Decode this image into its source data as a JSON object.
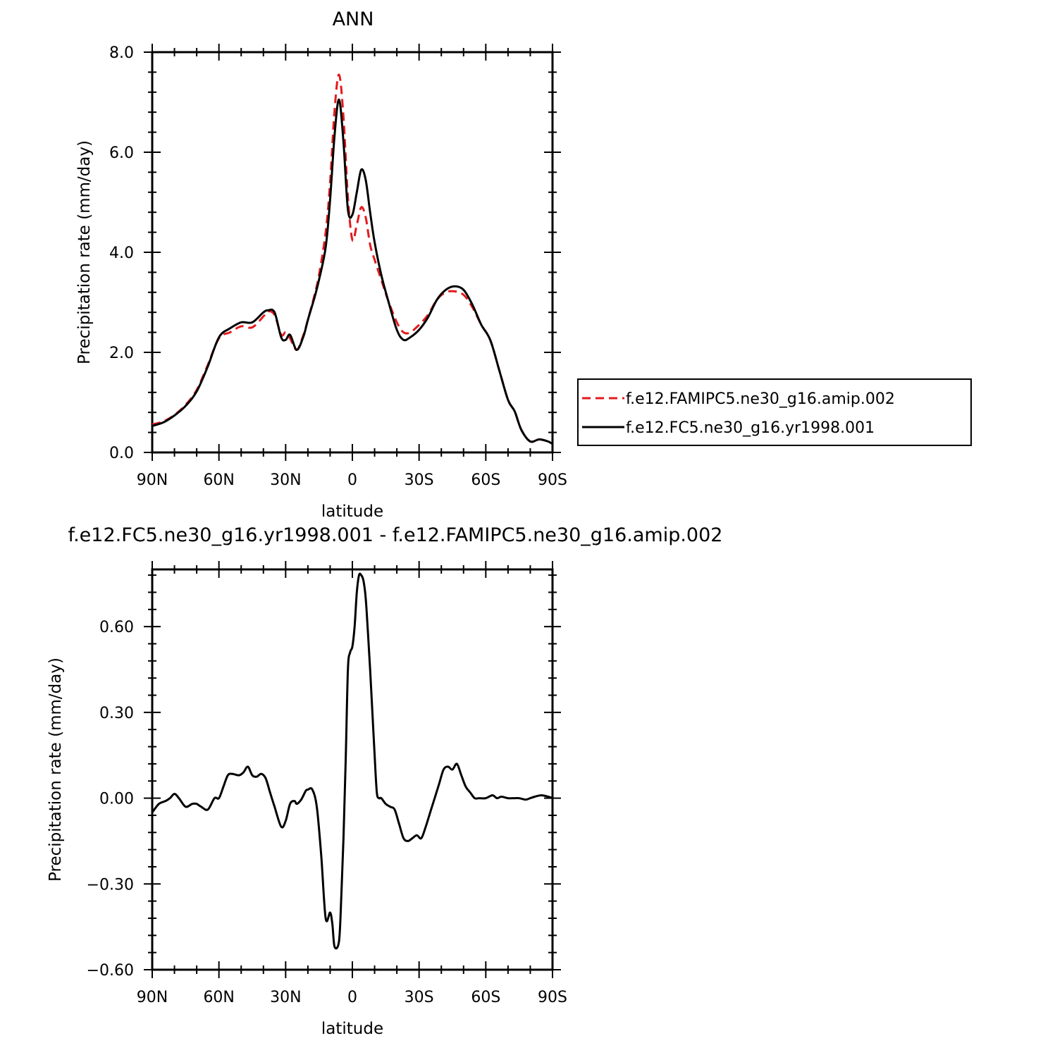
{
  "chart_data": [
    {
      "type": "line",
      "title": "ANN",
      "xlabel": "latitude",
      "ylabel": "Precipitation rate (mm/day)",
      "x_ticks": [
        "90N",
        "60N",
        "30N",
        "0",
        "30S",
        "60S",
        "90S"
      ],
      "y_ticks": [
        "0.0",
        "2.0",
        "4.0",
        "6.0",
        "8.0"
      ],
      "xlim": [
        90,
        -90
      ],
      "ylim": [
        0,
        8
      ],
      "legend_position": "right",
      "x": [
        90,
        85,
        80,
        75,
        70,
        65,
        60,
        55,
        50,
        45,
        40,
        38,
        35,
        32,
        30,
        28,
        25,
        22,
        20,
        17,
        15,
        12,
        10,
        8,
        6,
        4,
        2,
        0,
        -2,
        -4,
        -6,
        -8,
        -10,
        -13,
        -16,
        -20,
        -23,
        -26,
        -30,
        -34,
        -38,
        -42,
        -46,
        -50,
        -54,
        -58,
        -62,
        -66,
        -70,
        -73,
        -76,
        -80,
        -84,
        -88,
        -90
      ],
      "series": [
        {
          "name": "f.e12.FAMIPC5.ne30_g16.amip.002",
          "color": "#e31a1c",
          "dash": "dashed",
          "values": [
            0.56,
            0.62,
            0.75,
            0.95,
            1.25,
            1.75,
            2.28,
            2.4,
            2.52,
            2.5,
            2.72,
            2.82,
            2.75,
            2.35,
            2.4,
            2.28,
            2.05,
            2.35,
            2.65,
            3.15,
            3.55,
            4.4,
            5.4,
            6.85,
            7.55,
            6.7,
            5.1,
            4.25,
            4.55,
            4.9,
            4.7,
            4.15,
            3.85,
            3.45,
            3.05,
            2.6,
            2.4,
            2.4,
            2.55,
            2.75,
            3.05,
            3.2,
            3.22,
            3.15,
            2.9,
            2.55,
            2.25,
            1.65,
            1.05,
            0.82,
            0.45,
            0.22,
            0.26,
            0.22,
            0.17
          ]
        },
        {
          "name": "f.e12.FC5.ne30_g16.yr1998.001",
          "color": "#000000",
          "dash": "solid",
          "values": [
            0.53,
            0.6,
            0.74,
            0.93,
            1.22,
            1.72,
            2.3,
            2.48,
            2.6,
            2.6,
            2.8,
            2.84,
            2.8,
            2.3,
            2.25,
            2.35,
            2.05,
            2.32,
            2.65,
            3.1,
            3.45,
            4.1,
            5.05,
            6.35,
            7.05,
            6.2,
            4.85,
            4.75,
            5.2,
            5.65,
            5.45,
            4.8,
            4.2,
            3.55,
            3.05,
            2.45,
            2.25,
            2.3,
            2.45,
            2.7,
            3.05,
            3.25,
            3.32,
            3.25,
            2.95,
            2.55,
            2.25,
            1.65,
            1.05,
            0.82,
            0.45,
            0.22,
            0.26,
            0.22,
            0.17
          ]
        }
      ]
    },
    {
      "type": "line",
      "title": "f.e12.FC5.ne30_g16.yr1998.001 - f.e12.FAMIPC5.ne30_g16.amip.002",
      "xlabel": "latitude",
      "ylabel": "Precipitation rate (mm/day)",
      "x_ticks": [
        "90N",
        "60N",
        "30N",
        "0",
        "30S",
        "60S",
        "90S"
      ],
      "y_ticks": [
        "-0.60",
        "-0.30",
        "0.00",
        "0.30",
        "0.60"
      ],
      "xlim": [
        90,
        -90
      ],
      "ylim": [
        -0.6,
        0.8
      ],
      "x": [
        90,
        87,
        84,
        82,
        80,
        78,
        75,
        72,
        70,
        68,
        65,
        62,
        60,
        58,
        56,
        54,
        51,
        49,
        47,
        45,
        43,
        41,
        39,
        37,
        35,
        32,
        30,
        28,
        26,
        25,
        23,
        21,
        20,
        18,
        16,
        14,
        12,
        10,
        9,
        8,
        6,
        5,
        4,
        3,
        2,
        1,
        0,
        -1,
        -2,
        -3,
        -4,
        -5,
        -6,
        -7,
        -8,
        -9,
        -10,
        -11,
        -12,
        -13,
        -15,
        -17,
        -19,
        -21,
        -23,
        -25,
        -27,
        -29,
        -31,
        -33,
        -35,
        -37,
        -39,
        -41,
        -43,
        -45,
        -47,
        -49,
        -51,
        -53,
        -55,
        -57,
        -60,
        -63,
        -65,
        -67,
        -70,
        -73,
        -75,
        -78,
        -80,
        -82,
        -85,
        -88,
        -90
      ],
      "series": [
        {
          "color": "#000000",
          "values": [
            -0.05,
            -0.02,
            -0.01,
            0.0,
            0.015,
            0.0,
            -0.03,
            -0.02,
            -0.02,
            -0.03,
            -0.04,
            0.0,
            0.0,
            0.04,
            0.08,
            0.085,
            0.08,
            0.09,
            0.11,
            0.08,
            0.075,
            0.085,
            0.07,
            0.02,
            -0.03,
            -0.1,
            -0.08,
            -0.02,
            -0.01,
            -0.02,
            -0.005,
            0.025,
            0.03,
            0.03,
            -0.03,
            -0.2,
            -0.42,
            -0.4,
            -0.44,
            -0.52,
            -0.5,
            -0.35,
            -0.14,
            0.13,
            0.45,
            0.51,
            0.53,
            0.6,
            0.72,
            0.78,
            0.78,
            0.76,
            0.7,
            0.58,
            0.45,
            0.3,
            0.15,
            0.02,
            0.0,
            0.0,
            -0.02,
            -0.03,
            -0.04,
            -0.09,
            -0.14,
            -0.15,
            -0.14,
            -0.13,
            -0.14,
            -0.1,
            -0.05,
            0.0,
            0.05,
            0.1,
            0.11,
            0.1,
            0.12,
            0.08,
            0.04,
            0.02,
            0.0,
            0.0,
            0.0,
            0.01,
            0.0,
            0.005,
            0.0,
            0.0,
            0.0,
            -0.005,
            0.0,
            0.005,
            0.01,
            0.005,
            0.0
          ]
        }
      ]
    }
  ]
}
